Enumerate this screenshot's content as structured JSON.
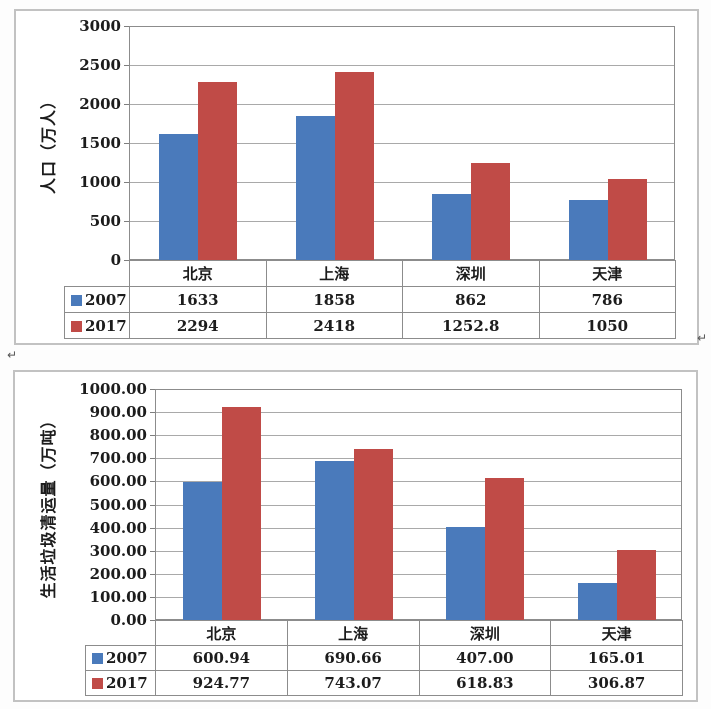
{
  "page": {
    "background": "#fdfdfd",
    "border_color": "#c2c2c2",
    "grid_color": "#a9a9a9",
    "axis_color": "#8c8c8c",
    "text_color": "#1c1c1c"
  },
  "annotations": {
    "return_mark_after_chart1": "↵",
    "return_mark_between_charts": "↵"
  },
  "chart_data": [
    {
      "type": "bar",
      "title": "",
      "xlabel": "",
      "ylabel": "人口（万人）",
      "categories": [
        "北京",
        "上海",
        "深圳",
        "天津"
      ],
      "series": [
        {
          "name": "2007",
          "color": "#4a7abb",
          "values": [
            1633,
            1858,
            862,
            786
          ],
          "display": [
            "1633",
            "1858",
            "862",
            "786"
          ]
        },
        {
          "name": "2017",
          "color": "#c04b47",
          "values": [
            2294,
            2418,
            1252.8,
            1050
          ],
          "display": [
            "2294",
            "2418",
            "1252.8",
            "1050"
          ]
        }
      ],
      "ylim": [
        0,
        3000
      ],
      "ystep": 500,
      "tick_labels": [
        "3000",
        "2500",
        "2000",
        "1500",
        "1000",
        "500",
        "0"
      ],
      "grid": true,
      "legend_position": "data-table-left"
    },
    {
      "type": "bar",
      "title": "",
      "xlabel": "",
      "ylabel": "生活垃圾清运量（万吨）",
      "categories": [
        "北京",
        "上海",
        "深圳",
        "天津"
      ],
      "series": [
        {
          "name": "2007",
          "color": "#4a7abb",
          "values": [
            600.94,
            690.66,
            407.0,
            165.01
          ],
          "display": [
            "600.94",
            "690.66",
            "407.00",
            "165.01"
          ]
        },
        {
          "name": "2017",
          "color": "#c04b47",
          "values": [
            924.77,
            743.07,
            618.83,
            306.87
          ],
          "display": [
            "924.77",
            "743.07",
            "618.83",
            "306.87"
          ]
        }
      ],
      "ylim": [
        0,
        1000
      ],
      "ystep": 100,
      "tick_labels": [
        "1000.00",
        "900.00",
        "800.00",
        "700.00",
        "600.00",
        "500.00",
        "400.00",
        "300.00",
        "200.00",
        "100.00",
        "0.00"
      ],
      "grid": true,
      "legend_position": "data-table-left"
    }
  ]
}
